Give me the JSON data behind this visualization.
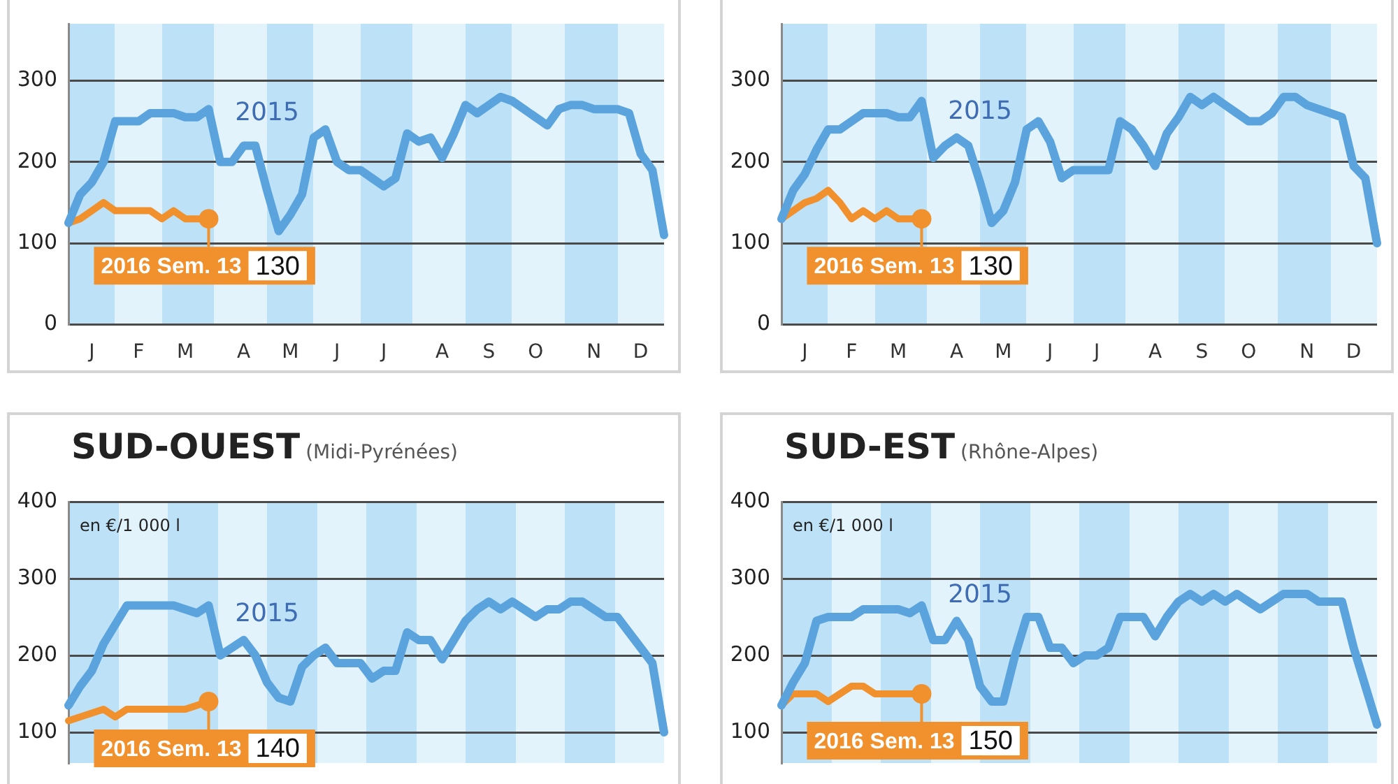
{
  "chart_data": [
    {
      "type": "line",
      "categories": [
        null,
        null,
        "J",
        null,
        null,
        null,
        "F",
        null,
        null,
        null,
        "M",
        null,
        null,
        null,
        null,
        "A",
        null,
        null,
        null,
        "M",
        null,
        null,
        null,
        "J",
        null,
        null,
        null,
        "J",
        null,
        null,
        null,
        null,
        "A",
        null,
        null,
        null,
        "S",
        null,
        null,
        null,
        "O",
        null,
        null,
        null,
        null,
        "N",
        null,
        null,
        null,
        "D",
        null,
        null
      ],
      "series": [
        {
          "name": "2015",
          "color": "#5ba3dc",
          "values": [
            125,
            160,
            175,
            200,
            250,
            250,
            250,
            260,
            260,
            260,
            255,
            255,
            265,
            200,
            200,
            220,
            220,
            165,
            115,
            135,
            160,
            230,
            240,
            200,
            190,
            190,
            180,
            170,
            180,
            235,
            225,
            230,
            205,
            235,
            270,
            260,
            270,
            280,
            275,
            265,
            255,
            245,
            265,
            270,
            270,
            265,
            265,
            265,
            260,
            210,
            190,
            110
          ]
        },
        {
          "name": "2016 Sem. 13",
          "color": "#f0912d",
          "values": [
            125,
            130,
            140,
            150,
            140,
            140,
            140,
            140,
            130,
            140,
            130,
            130,
            130,
            null,
            null,
            null,
            null,
            null,
            null,
            null,
            null,
            null,
            null,
            null,
            null,
            null,
            null,
            null,
            null,
            null,
            null,
            null,
            null,
            null,
            null,
            null,
            null,
            null,
            null,
            null,
            null,
            null,
            null,
            null,
            null,
            null,
            null,
            null,
            null,
            null,
            null,
            null
          ],
          "value_labels": [
            null,
            null,
            null,
            null,
            null,
            null,
            null,
            null,
            null,
            null,
            null,
            null,
            "130",
            null,
            null,
            null,
            null,
            null,
            null,
            null,
            null,
            null,
            null,
            null,
            null,
            null,
            null,
            null,
            null,
            null,
            null,
            null,
            null,
            null,
            null,
            null,
            null,
            null,
            null,
            null,
            null,
            null,
            null,
            null,
            null,
            null,
            null,
            null,
            null,
            null,
            null,
            null
          ]
        }
      ],
      "ylim": [
        0,
        370
      ],
      "yticks": [
        0,
        100,
        200,
        300
      ],
      "grid": "y",
      "legend": false,
      "marker": "none"
    },
    {
      "type": "line",
      "categories": [
        null,
        null,
        "J",
        null,
        null,
        null,
        "F",
        null,
        null,
        null,
        "M",
        null,
        null,
        null,
        null,
        "A",
        null,
        null,
        null,
        "M",
        null,
        null,
        null,
        "J",
        null,
        null,
        null,
        "J",
        null,
        null,
        null,
        null,
        "A",
        null,
        null,
        null,
        "S",
        null,
        null,
        null,
        "O",
        null,
        null,
        null,
        null,
        "N",
        null,
        null,
        null,
        "D",
        null,
        null
      ],
      "series": [
        {
          "name": "2015",
          "color": "#5ba3dc",
          "values": [
            130,
            165,
            185,
            215,
            240,
            240,
            250,
            260,
            260,
            260,
            255,
            255,
            275,
            205,
            220,
            230,
            220,
            175,
            125,
            140,
            175,
            240,
            250,
            225,
            180,
            190,
            190,
            190,
            190,
            250,
            240,
            220,
            195,
            235,
            255,
            280,
            270,
            280,
            270,
            260,
            250,
            250,
            260,
            280,
            280,
            270,
            265,
            260,
            255,
            195,
            180,
            100
          ]
        },
        {
          "name": "2016 Sem. 13",
          "color": "#f0912d",
          "values": [
            130,
            140,
            150,
            155,
            165,
            150,
            130,
            140,
            130,
            140,
            130,
            130,
            130,
            null,
            null,
            null,
            null,
            null,
            null,
            null,
            null,
            null,
            null,
            null,
            null,
            null,
            null,
            null,
            null,
            null,
            null,
            null,
            null,
            null,
            null,
            null,
            null,
            null,
            null,
            null,
            null,
            null,
            null,
            null,
            null,
            null,
            null,
            null,
            null,
            null,
            null,
            null
          ],
          "value_labels": [
            null,
            null,
            null,
            null,
            null,
            null,
            null,
            null,
            null,
            null,
            null,
            null,
            "130",
            null,
            null,
            null,
            null,
            null,
            null,
            null,
            null,
            null,
            null,
            null,
            null,
            null,
            null,
            null,
            null,
            null,
            null,
            null,
            null,
            null,
            null,
            null,
            null,
            null,
            null,
            null,
            null,
            null,
            null,
            null,
            null,
            null,
            null,
            null,
            null,
            null,
            null,
            null
          ]
        }
      ],
      "ylim": [
        0,
        370
      ],
      "yticks": [
        0,
        100,
        200,
        300
      ],
      "grid": "y",
      "legend": false,
      "marker": "none"
    },
    {
      "type": "line",
      "title": "SUD-OUEST",
      "subtitle": "(Midi-Pyrénées)",
      "ylabel": "en €/1 000 l",
      "categories": [
        null,
        null,
        null,
        null,
        null,
        null,
        null,
        null,
        null,
        null,
        null,
        null,
        null,
        null,
        null,
        null,
        null,
        null,
        null,
        null,
        null,
        null,
        null,
        null,
        null,
        null,
        null,
        null,
        null,
        null,
        null,
        null,
        null,
        null,
        null,
        null,
        null,
        null,
        null,
        null,
        null,
        null,
        null,
        null,
        null,
        null,
        null,
        null,
        null,
        null,
        null,
        null
      ],
      "series": [
        {
          "name": "2015",
          "color": "#5ba3dc",
          "values": [
            135,
            160,
            180,
            215,
            240,
            265,
            265,
            265,
            265,
            265,
            260,
            255,
            265,
            200,
            210,
            220,
            200,
            165,
            145,
            140,
            185,
            200,
            210,
            190,
            190,
            190,
            170,
            180,
            180,
            230,
            220,
            220,
            195,
            220,
            245,
            260,
            270,
            260,
            270,
            260,
            250,
            260,
            260,
            270,
            270,
            260,
            250,
            250,
            230,
            210,
            190,
            100
          ]
        },
        {
          "name": "2016 Sem. 13",
          "color": "#f0912d",
          "values": [
            115,
            120,
            125,
            130,
            120,
            130,
            130,
            130,
            130,
            130,
            130,
            135,
            140,
            null,
            null,
            null,
            null,
            null,
            null,
            null,
            null,
            null,
            null,
            null,
            null,
            null,
            null,
            null,
            null,
            null,
            null,
            null,
            null,
            null,
            null,
            null,
            null,
            null,
            null,
            null,
            null,
            null,
            null,
            null,
            null,
            null,
            null,
            null,
            null,
            null,
            null,
            null
          ],
          "value_labels": [
            null,
            null,
            null,
            null,
            null,
            null,
            null,
            null,
            null,
            null,
            null,
            null,
            "140",
            null,
            null,
            null,
            null,
            null,
            null,
            null,
            null,
            null,
            null,
            null,
            null,
            null,
            null,
            null,
            null,
            null,
            null,
            null,
            null,
            null,
            null,
            null,
            null,
            null,
            null,
            null,
            null,
            null,
            null,
            null,
            null,
            null,
            null,
            null,
            null,
            null,
            null,
            null
          ]
        }
      ],
      "ylim": [
        60,
        400
      ],
      "yticks": [
        100,
        200,
        300,
        400
      ],
      "grid": "y",
      "legend": false,
      "marker": "none",
      "tick_labels": "y"
    },
    {
      "type": "line",
      "title": "SUD-EST",
      "subtitle": "(Rhône-Alpes)",
      "ylabel": "en €/1 000 l",
      "categories": [
        null,
        null,
        null,
        null,
        null,
        null,
        null,
        null,
        null,
        null,
        null,
        null,
        null,
        null,
        null,
        null,
        null,
        null,
        null,
        null,
        null,
        null,
        null,
        null,
        null,
        null,
        null,
        null,
        null,
        null,
        null,
        null,
        null,
        null,
        null,
        null,
        null,
        null,
        null,
        null,
        null,
        null,
        null,
        null,
        null,
        null,
        null,
        null,
        null,
        null,
        null,
        null
      ],
      "series": [
        {
          "name": "2015",
          "color": "#5ba3dc",
          "values": [
            135,
            165,
            190,
            245,
            250,
            250,
            250,
            260,
            260,
            260,
            260,
            255,
            265,
            220,
            220,
            245,
            220,
            160,
            140,
            140,
            200,
            250,
            250,
            210,
            210,
            190,
            200,
            200,
            210,
            250,
            250,
            250,
            225,
            250,
            270,
            280,
            270,
            280,
            270,
            280,
            270,
            260,
            270,
            280,
            280,
            280,
            270,
            270,
            270,
            210,
            160,
            110
          ]
        },
        {
          "name": "2016 Sem. 13",
          "color": "#f0912d",
          "values": [
            135,
            150,
            150,
            150,
            140,
            150,
            160,
            160,
            150,
            150,
            150,
            150,
            150,
            null,
            null,
            null,
            null,
            null,
            null,
            null,
            null,
            null,
            null,
            null,
            null,
            null,
            null,
            null,
            null,
            null,
            null,
            null,
            null,
            null,
            null,
            null,
            null,
            null,
            null,
            null,
            null,
            null,
            null,
            null,
            null,
            null,
            null,
            null,
            null,
            null,
            null,
            null
          ],
          "value_labels": [
            null,
            null,
            null,
            null,
            null,
            null,
            null,
            null,
            null,
            null,
            null,
            null,
            "150",
            null,
            null,
            null,
            null,
            null,
            null,
            null,
            null,
            null,
            null,
            null,
            null,
            null,
            null,
            null,
            null,
            null,
            null,
            null,
            null,
            null,
            null,
            null,
            null,
            null,
            null,
            null,
            null,
            null,
            null,
            null,
            null,
            null,
            null,
            null,
            null,
            null,
            null,
            null
          ]
        }
      ],
      "ylim": [
        60,
        400
      ],
      "yticks": [
        100,
        200,
        300,
        400
      ],
      "grid": "y",
      "legend": false,
      "marker": "none",
      "tick_labels": "y"
    }
  ]
}
